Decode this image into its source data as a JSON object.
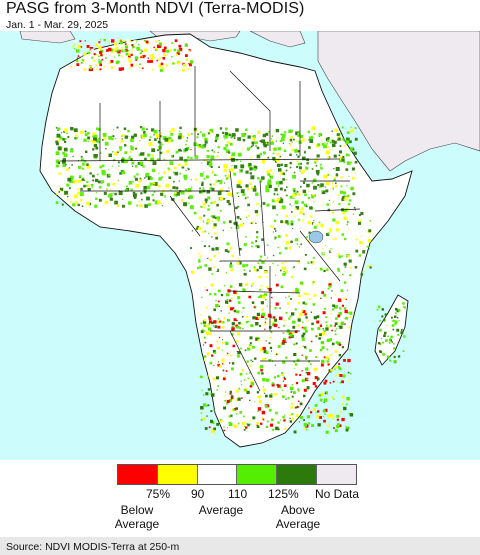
{
  "title": "PASG from 3-Month NDVI (Terra-MODIS)",
  "subtitle": "Jan. 1 - Mar. 29, 2025",
  "legend": {
    "colors": [
      "#ff0000",
      "#ffff00",
      "#ffffff",
      "#55ee00",
      "#2b7a0b",
      "#efe9f0"
    ],
    "ticks": [
      "75%",
      "90",
      "110",
      "125%",
      "No Data"
    ],
    "below": "Below\nAverage",
    "average": "Average",
    "above": "Above\nAverage"
  },
  "map_colors": {
    "ocean": "#cdfcfd",
    "land": "#ffffff",
    "no_data": "#efe9f0",
    "border": "#000000"
  },
  "source": "Source: NDVI MODIS-Terra at 250-m"
}
